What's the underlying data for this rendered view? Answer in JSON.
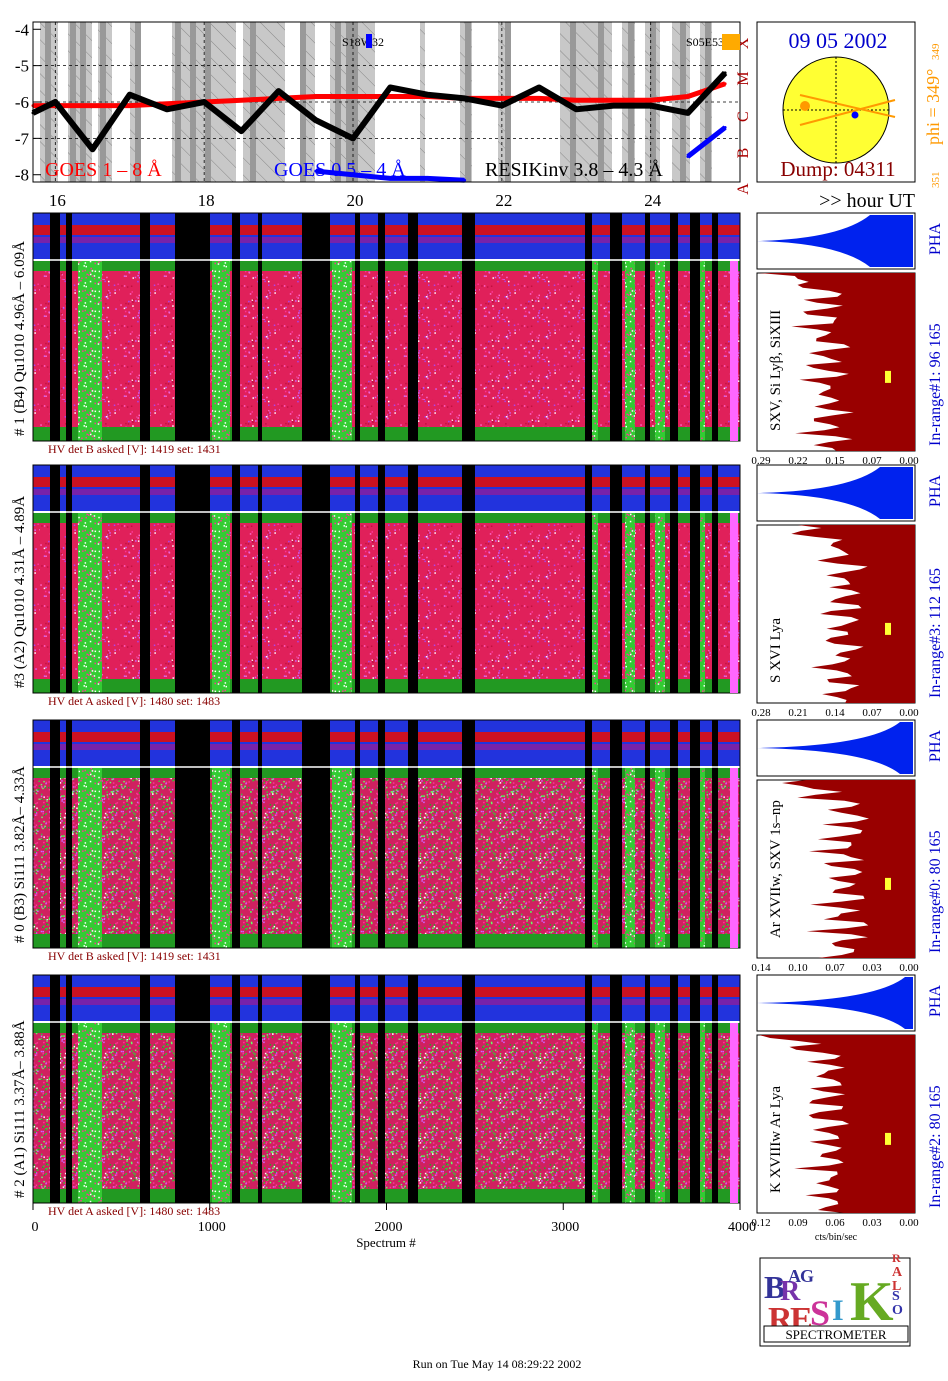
{
  "goes": {
    "y_ticks": [
      "-4",
      "-5",
      "-6",
      "-7",
      "-8"
    ],
    "class_letters": [
      "X",
      "M",
      "C",
      "B",
      "A"
    ],
    "hour_ticks": [
      "16",
      "18",
      "20",
      "22",
      "24"
    ],
    "hour_unit_label": ">> hour UT",
    "label_goes_long": "GOES 1 – 8 Å",
    "label_goes_short": "GOES 0.5 – 4 Å",
    "label_resik": "RESIKinv 3.8 – 4.3 Å",
    "flare_label_1": "S18W32",
    "flare_label_2": "S05E53",
    "colors": {
      "long": "#ff0000",
      "short": "#0000ff",
      "resik": "#000000",
      "class": "#aa0000"
    }
  },
  "sun": {
    "date": "09 05 2002",
    "dump": "Dump: 04311",
    "phi_label": "phi = 349°",
    "phi_small": "349",
    "small_351": "351",
    "colors": {
      "disk": "#ffff33",
      "date": "#0000cc",
      "dump": "#880000",
      "phi": "#ff9900"
    }
  },
  "panels": [
    {
      "title": "# 1 (B4) Qu1010 4.96Å – 6.09Å",
      "line_ids": "SXV, Si Lyβ, SiXIII",
      "in_range": "In-range#1:   96 165",
      "hv": "HV det B asked [V]:   1419  set:   1431",
      "ticks": [
        "0.29",
        "0.22",
        "0.15",
        "0.07",
        "0.00"
      ]
    },
    {
      "title": "#3 (A2) Qu1010  4.31Å – 4.89Å",
      "line_ids": "S XVI Lya",
      "in_range": "In-range#3:   112 165",
      "hv": "HV det A asked [V]:   1480  set:   1483",
      "ticks": [
        "0.28",
        "0.21",
        "0.14",
        "0.07",
        "0.00"
      ]
    },
    {
      "title": "# 0 (B3) Si111  3.82Å– 4.33Å",
      "line_ids": "Ar XVIIw,  SXV 1s–np",
      "in_range": "In-range#0:   80 165",
      "hv": "HV det B asked [V]:   1419  set:   1431",
      "ticks": [
        "0.14",
        "0.10",
        "0.07",
        "0.03",
        "0.00"
      ]
    },
    {
      "title": "# 2 (A1) Si111  3.37Å– 3.88Å",
      "line_ids": "K XVIIIw  Ar Lya",
      "in_range": "In-range#2:   80 165",
      "hv": "HV det A asked [V]:   1480  set:   1483",
      "ticks": [
        "0.12",
        "0.09",
        "0.06",
        "0.03",
        "0.00"
      ]
    }
  ],
  "pha_label": "PHA",
  "x_axis": {
    "ticks": [
      "0",
      "1000",
      "2000",
      "3000",
      "4000"
    ],
    "label": "Spectrum #",
    "cts_label": "cts/bin/sec"
  },
  "logo": {
    "letters": [
      "B",
      "R",
      "A",
      "G",
      "R",
      "E",
      "S",
      "I",
      "K",
      "S",
      "O",
      "L",
      "A",
      "R"
    ],
    "title": "SPECTROMETER"
  },
  "footer": "Run on Tue May 14 08:29:22 2002",
  "chart_data": {
    "type": "line",
    "title": "",
    "xlabel": "",
    "ylabel": "",
    "x": [
      15.7,
      16,
      16.5,
      17,
      17.5,
      18,
      18.5,
      19,
      19.5,
      20,
      20.5,
      21,
      21.5,
      22,
      22.5,
      23,
      23.5,
      24,
      24.5,
      25
    ],
    "xlim": [
      15.7,
      25.2
    ],
    "ylim": [
      -8.2,
      -3.8
    ],
    "series": [
      {
        "name": "GOES 1 – 8 Å",
        "values": [
          -6.1,
          -6.1,
          -6.1,
          -6.1,
          -6.05,
          -6.0,
          -5.95,
          -5.9,
          -5.85,
          -5.85,
          -5.85,
          -5.85,
          -5.9,
          -5.9,
          -5.9,
          -5.95,
          -5.95,
          -5.95,
          -5.85,
          -5.5
        ]
      },
      {
        "name": "GOES 0.5 – 4 Å",
        "values": [
          null,
          null,
          null,
          null,
          null,
          null,
          null,
          null,
          -7.9,
          -8.0,
          -8.1,
          -8.1,
          -8.15,
          null,
          null,
          null,
          null,
          null,
          -7.5,
          -6.7
        ]
      },
      {
        "name": "RESIKinv 3.8 – 4.3 Å",
        "values": [
          -6.3,
          -6.0,
          -7.3,
          -5.8,
          -6.2,
          -6.0,
          -6.8,
          -5.7,
          -6.5,
          -7.0,
          -5.6,
          -5.8,
          -5.9,
          -6.1,
          -5.6,
          -6.2,
          -6.1,
          -6.1,
          -6.3,
          -5.2
        ]
      }
    ]
  }
}
